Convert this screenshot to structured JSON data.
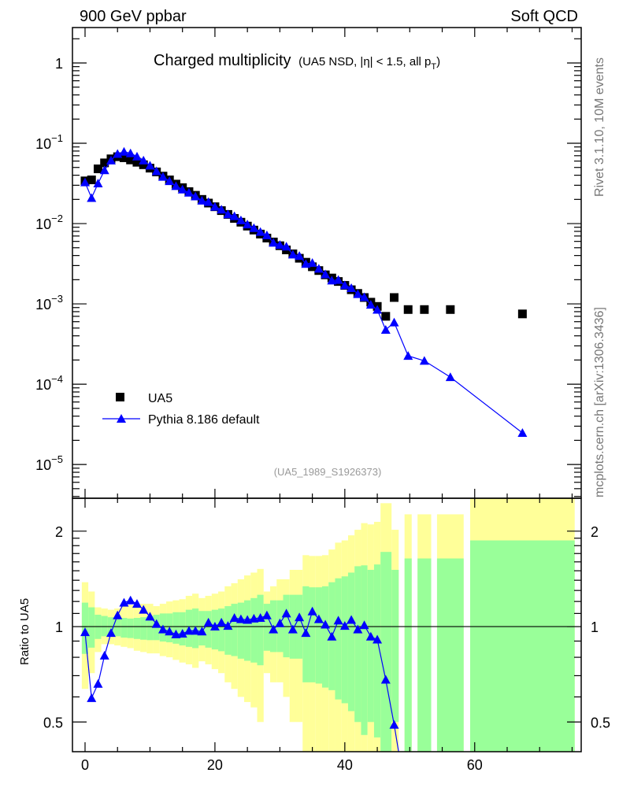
{
  "header": {
    "left": "900 GeV ppbar",
    "right": "Soft QCD"
  },
  "side_text": {
    "top": "Rivet 3.1.10,  10M events",
    "bottom": "mcplots.cern.ch [arXiv:1306.3436]"
  },
  "colors": {
    "ua5": "#000000",
    "pythia": "#0000ff",
    "band_total": "#ffff99",
    "band_stat": "#99ff99"
  },
  "chart_data": {
    "type": "scatter",
    "title": "Charged multiplicity",
    "subtitle_pre": "(UA5 NSD, |",
    "subtitle_eta": "η",
    "subtitle_mid": "| < 1.5, all p",
    "subtitle_sub": "T",
    "subtitle_post": ")",
    "analysis_id": "(UA5_1989_S1926373)",
    "xlim": [
      -1.94,
      76.4
    ],
    "ylim": [
      3.8e-06,
      2.76
    ],
    "yscale": "log",
    "x_ticks": [
      0,
      20,
      40,
      60
    ],
    "x_tick_labels": [
      "0",
      "20",
      "40",
      "60"
    ],
    "y_ticks": [
      {
        "value": 1,
        "base": "1",
        "exp": ""
      },
      {
        "value": 0.1,
        "base": "10",
        "exp": "−1"
      },
      {
        "value": 0.01,
        "base": "10",
        "exp": "−2"
      },
      {
        "value": 0.001,
        "base": "10",
        "exp": "−3"
      },
      {
        "value": 0.0001,
        "base": "10",
        "exp": "−4"
      },
      {
        "value": 1e-05,
        "base": "10",
        "exp": "−5"
      }
    ],
    "legend": {
      "position": "bottom-left",
      "entries": [
        "UA5",
        "Pythia 8.186 default"
      ]
    },
    "series": [
      {
        "name": "UA5",
        "x": [
          0,
          1,
          2,
          3,
          4,
          5,
          6,
          7,
          8,
          9,
          10,
          11,
          12,
          13,
          14,
          15,
          16,
          17,
          18,
          19,
          20,
          21,
          22,
          23,
          24,
          25,
          26,
          27,
          28,
          29,
          30,
          31,
          32,
          33,
          34,
          35,
          36,
          37,
          38,
          39,
          40,
          41,
          42,
          43,
          44,
          45,
          46.3,
          47.6,
          49.75,
          52.25,
          56.25,
          67.35
        ],
        "y": [
          0.034,
          0.035,
          0.048,
          0.057,
          0.064,
          0.068,
          0.066,
          0.062,
          0.058,
          0.054,
          0.049,
          0.044,
          0.039,
          0.035,
          0.031,
          0.028,
          0.025,
          0.0225,
          0.02,
          0.018,
          0.0162,
          0.0145,
          0.013,
          0.0116,
          0.0104,
          0.0093,
          0.0083,
          0.0074,
          0.0066,
          0.0059,
          0.0053,
          0.0047,
          0.0042,
          0.0037,
          0.0033,
          0.0029,
          0.0026,
          0.0023,
          0.0021,
          0.0019,
          0.0017,
          0.0015,
          0.00135,
          0.0012,
          0.00105,
          0.00093,
          0.0007,
          0.0012,
          0.00085,
          0.00085,
          0.00085,
          0.00075
        ]
      },
      {
        "name": "Pythia 8.186 default",
        "x_from": "UA5",
        "ratio_to_ua5": [
          0.96,
          0.595,
          0.66,
          0.81,
          0.955,
          1.085,
          1.19,
          1.21,
          1.18,
          1.13,
          1.075,
          1.02,
          0.98,
          0.965,
          0.945,
          0.95,
          0.97,
          0.97,
          0.965,
          1.03,
          1.0,
          1.03,
          1.005,
          1.065,
          1.055,
          1.05,
          1.06,
          1.065,
          1.085,
          0.98,
          1.025,
          1.1,
          0.98,
          1.07,
          0.955,
          1.117,
          1.055,
          1.015,
          0.93,
          1.045,
          1.005,
          1.05,
          0.98,
          1.01,
          0.93,
          0.91,
          0.68,
          0.49,
          0.265,
          0.23,
          0.144,
          0.033
        ]
      }
    ],
    "ratio_panel": {
      "ylabel": "Ratio to UA5",
      "yscale": "log",
      "ylim": [
        0.403,
        2.54
      ],
      "y_ticks": [
        0.5,
        1,
        2
      ],
      "y_tick_labels": [
        "0.5",
        "1",
        "2"
      ],
      "bands": [
        [
          -0.5,
          0.5,
          1.38,
          1.19,
          0.82,
          0.636
        ],
        [
          0.5,
          1.5,
          1.29,
          1.15,
          0.858,
          0.713
        ],
        [
          1.5,
          2.5,
          1.15,
          1.09,
          0.914,
          0.831
        ],
        [
          2.5,
          3.5,
          1.14,
          1.08,
          0.932,
          0.88
        ],
        [
          3.5,
          4.5,
          1.13,
          1.07,
          0.936,
          0.88
        ],
        [
          4.5,
          5.5,
          1.14,
          1.065,
          0.932,
          0.872
        ],
        [
          5.5,
          6.5,
          1.16,
          1.065,
          0.923,
          0.863
        ],
        [
          6.5,
          7.5,
          1.17,
          1.06,
          0.92,
          0.855
        ],
        [
          7.5,
          8.5,
          1.18,
          1.065,
          0.914,
          0.839
        ],
        [
          8.5,
          9.5,
          1.18,
          1.07,
          0.909,
          0.831
        ],
        [
          9.5,
          10.5,
          1.18,
          1.08,
          0.906,
          0.823
        ],
        [
          10.5,
          11.5,
          1.16,
          1.09,
          0.906,
          0.823
        ],
        [
          11.5,
          12.5,
          1.18,
          1.1,
          0.897,
          0.807
        ],
        [
          12.5,
          13.5,
          1.2,
          1.1,
          0.892,
          0.8
        ],
        [
          13.5,
          14.5,
          1.21,
          1.11,
          0.883,
          0.785
        ],
        [
          14.5,
          15.5,
          1.22,
          1.11,
          0.872,
          0.77
        ],
        [
          15.5,
          16.5,
          1.25,
          1.13,
          0.863,
          0.76
        ],
        [
          16.5,
          17.5,
          1.27,
          1.14,
          0.855,
          0.741
        ],
        [
          17.5,
          18.5,
          1.23,
          1.12,
          0.872,
          0.777
        ],
        [
          18.5,
          19.5,
          1.25,
          1.12,
          0.858,
          0.76
        ],
        [
          19.5,
          20.5,
          1.27,
          1.13,
          0.847,
          0.734
        ],
        [
          20.5,
          21.5,
          1.29,
          1.14,
          0.836,
          0.713
        ],
        [
          21.5,
          22.5,
          1.34,
          1.16,
          0.815,
          0.667
        ],
        [
          22.5,
          23.5,
          1.37,
          1.18,
          0.807,
          0.636
        ],
        [
          23.5,
          24.5,
          1.41,
          1.19,
          0.792,
          0.6
        ],
        [
          24.5,
          25.5,
          1.45,
          1.21,
          0.78,
          0.578
        ],
        [
          25.5,
          26.5,
          1.48,
          1.23,
          0.77,
          0.556
        ],
        [
          26.5,
          27.5,
          1.52,
          1.26,
          0.755,
          0.5
        ],
        [
          27.5,
          28.5,
          1.29,
          1.18,
          0.839,
          0.713
        ],
        [
          28.5,
          29.5,
          1.34,
          1.21,
          0.831,
          0.667
        ],
        [
          29.5,
          30.5,
          1.41,
          1.21,
          0.831,
          0.667
        ],
        [
          30.5,
          31.5,
          1.41,
          1.26,
          0.8,
          0.6
        ],
        [
          31.5,
          32.5,
          1.51,
          1.26,
          0.792,
          0.5
        ],
        [
          32.5,
          33.5,
          1.51,
          1.26,
          0.792,
          0.5
        ],
        [
          33.5,
          34.5,
          1.68,
          1.34,
          0.667,
          0.3
        ],
        [
          34.5,
          35.5,
          1.67,
          1.33,
          0.667,
          0.3
        ],
        [
          35.5,
          36.5,
          1.67,
          1.33,
          0.661,
          0.3
        ],
        [
          36.5,
          37.5,
          1.68,
          1.34,
          0.642,
          0.3
        ],
        [
          37.5,
          38.5,
          1.75,
          1.38,
          0.63,
          0.3
        ],
        [
          38.5,
          39.5,
          1.84,
          1.42,
          0.589,
          0.3
        ],
        [
          39.5,
          40.5,
          1.87,
          1.44,
          0.573,
          0.3
        ],
        [
          40.5,
          41.5,
          1.94,
          1.48,
          0.541,
          0.3
        ],
        [
          41.5,
          42.5,
          2.02,
          1.55,
          0.5,
          0.3
        ],
        [
          42.5,
          43.5,
          2.12,
          1.56,
          0.455,
          0.3
        ],
        [
          43.5,
          44.5,
          2.1,
          1.51,
          0.5,
          0.3
        ],
        [
          44.5,
          45.5,
          2.14,
          1.57,
          0.447,
          0.3
        ],
        [
          45.5,
          47.2,
          2.45,
          1.72,
          0.3,
          0.3
        ],
        [
          47.2,
          48.3,
          2.02,
          1.51,
          0.5,
          0.3
        ],
        [
          49.2,
          50.3,
          2.26,
          1.64,
          0.3,
          0.3
        ],
        [
          51.2,
          53.3,
          2.26,
          1.64,
          0.3,
          0.3
        ],
        [
          54.2,
          58.3,
          2.26,
          1.64,
          0.3,
          0.3
        ],
        [
          59.3,
          75.4,
          3.0,
          1.87,
          0.3,
          0.3
        ]
      ]
    }
  }
}
